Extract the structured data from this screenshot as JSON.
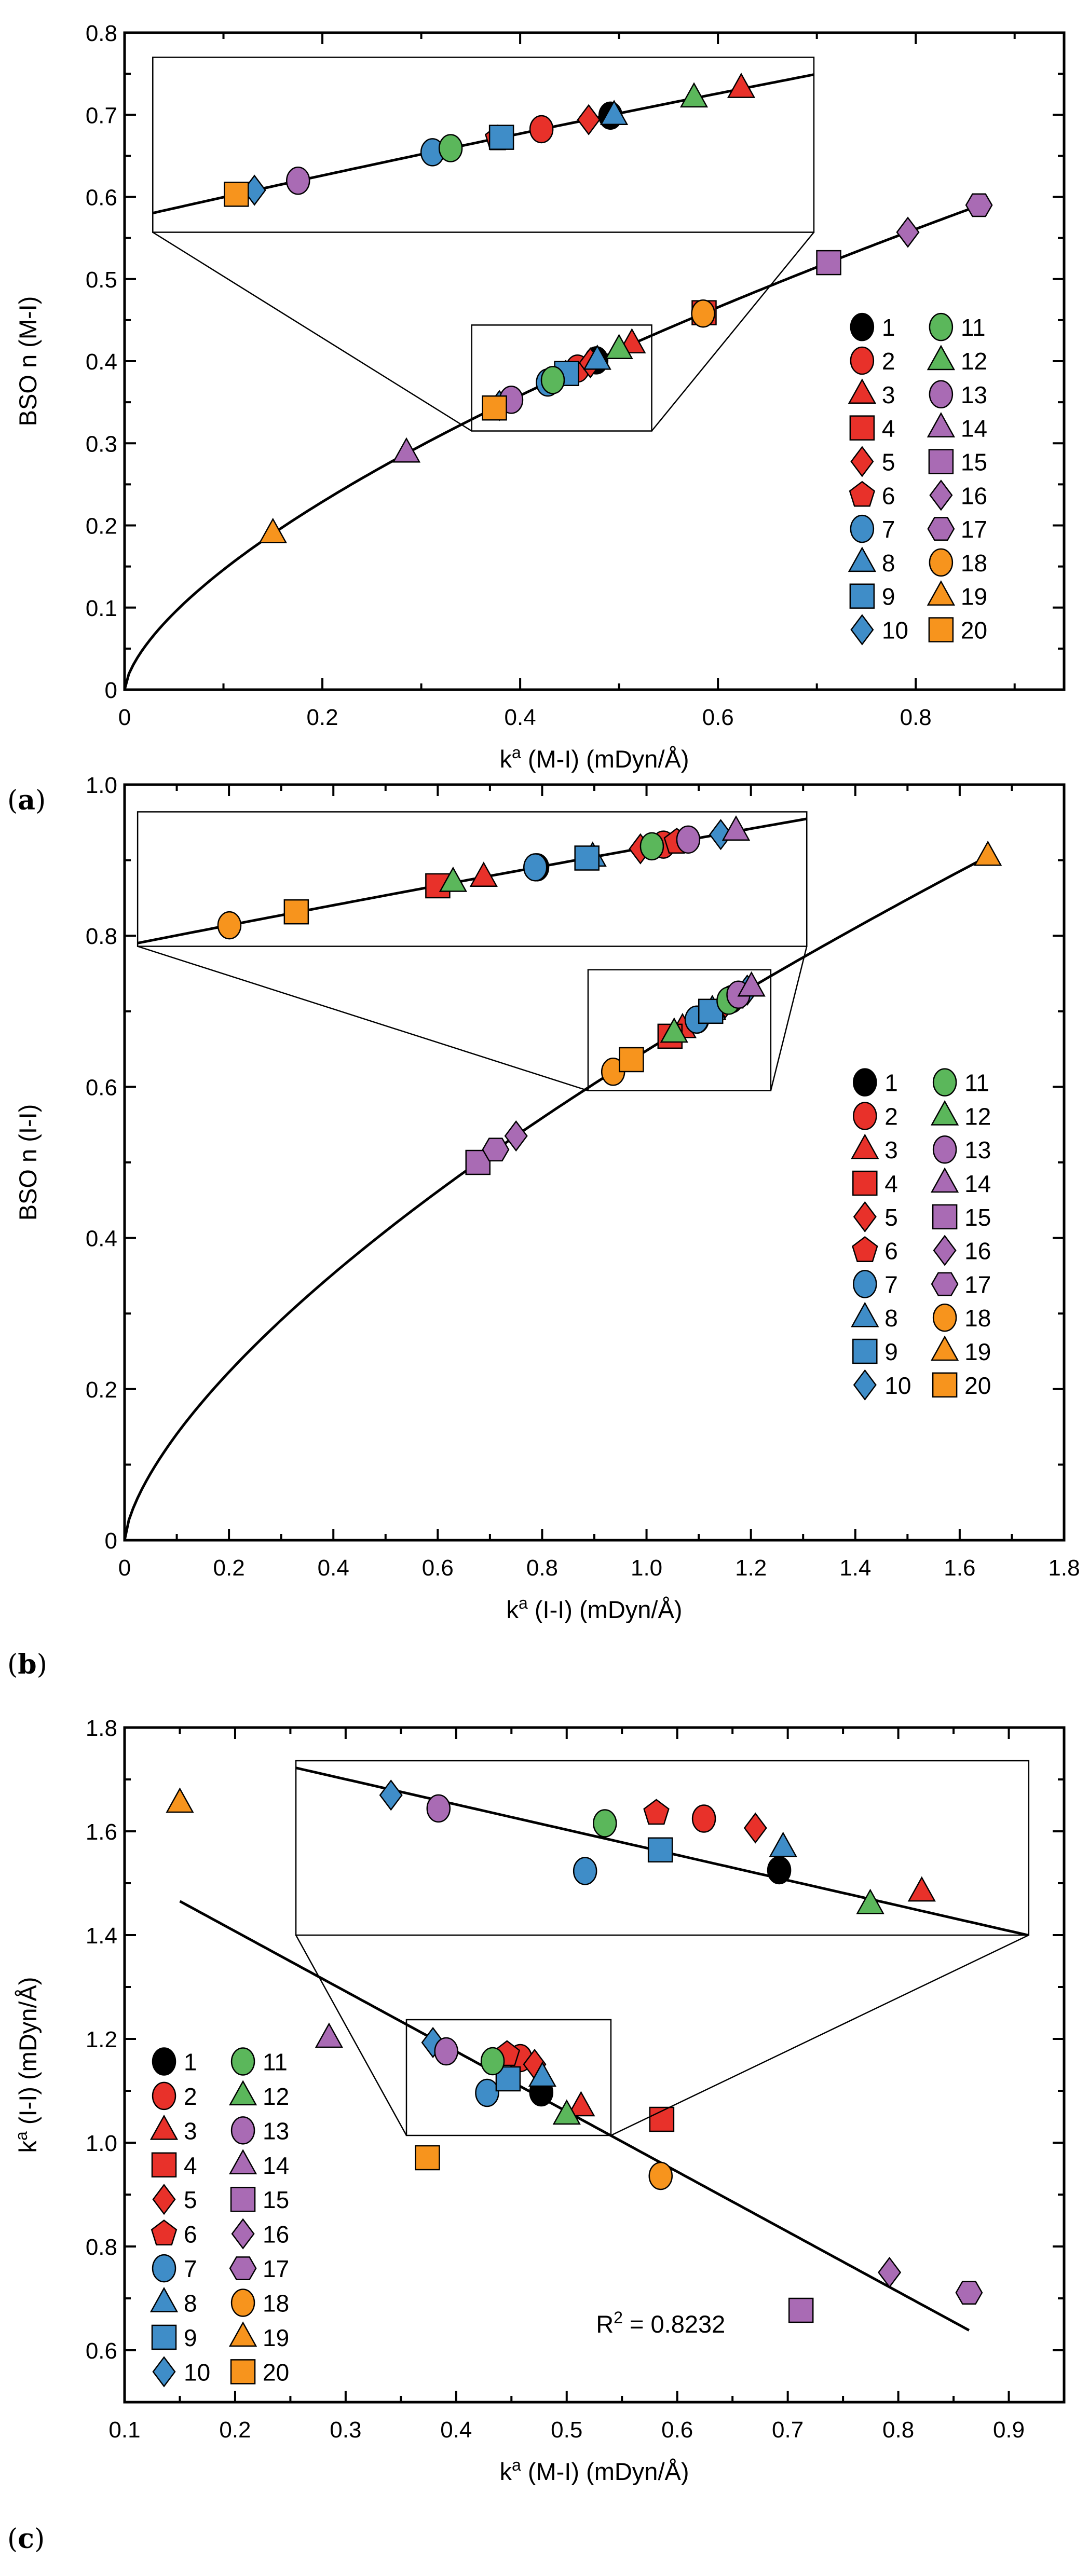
{
  "chart_data": [
    {
      "type": "scatter",
      "panel_label": {
        "open": "(",
        "letter": "a",
        "close": ")"
      },
      "xlabel": {
        "base": "k",
        "sup": "a",
        "rest": " (M-I) (mDyn/Å)"
      },
      "ylabel": "BSO n (M-I)",
      "xlim": [
        0,
        0.95
      ],
      "ylim": [
        0,
        0.8
      ],
      "xticks": [
        {
          "v": 0,
          "label": "0"
        },
        {
          "v": 0.2,
          "label": "0.2"
        },
        {
          "v": 0.4,
          "label": "0.4"
        },
        {
          "v": 0.6,
          "label": "0.6"
        },
        {
          "v": 0.8,
          "label": "0.8"
        }
      ],
      "yticks": [
        {
          "v": 0,
          "label": "0"
        },
        {
          "v": 0.1,
          "label": "0.1"
        },
        {
          "v": 0.2,
          "label": "0.2"
        },
        {
          "v": 0.3,
          "label": "0.3"
        },
        {
          "v": 0.4,
          "label": "0.4"
        },
        {
          "v": 0.5,
          "label": "0.5"
        },
        {
          "v": 0.6,
          "label": "0.6"
        },
        {
          "v": 0.7,
          "label": "0.7"
        },
        {
          "v": 0.8,
          "label": "0.8"
        }
      ],
      "xminor": 0.1,
      "yminor": 0.05,
      "fit": {
        "kind": "power",
        "a": 0.648,
        "b": 0.647,
        "xrange": [
          0,
          0.864
        ]
      },
      "inset": {
        "source_x": [
          0.351,
          0.533
        ],
        "source_y": [
          0.315,
          0.444
        ],
        "display_x": [
          0.0285,
          0.697
        ],
        "display_y": [
          0.557,
          0.77
        ]
      },
      "legend": "bottom-right",
      "series": [
        {
          "name": "1",
          "shape": "circle",
          "color": "#000000",
          "x": 0.477,
          "y": 0.401
        },
        {
          "name": "2",
          "shape": "circle",
          "color": "#E8312A",
          "x": 0.458,
          "y": 0.391
        },
        {
          "name": "3",
          "shape": "triangle",
          "color": "#E8312A",
          "x": 0.513,
          "y": 0.421
        },
        {
          "name": "4",
          "shape": "square",
          "color": "#E8312A",
          "x": 0.586,
          "y": 0.459
        },
        {
          "name": "5",
          "shape": "diamond",
          "color": "#E8312A",
          "x": 0.471,
          "y": 0.398
        },
        {
          "name": "6",
          "shape": "pentagon",
          "color": "#E8312A",
          "x": 0.446,
          "y": 0.384
        },
        {
          "name": "7",
          "shape": "circle",
          "color": "#3F8DC8",
          "x": 0.428,
          "y": 0.374
        },
        {
          "name": "8",
          "shape": "triangle",
          "color": "#3F8DC8",
          "x": 0.478,
          "y": 0.401
        },
        {
          "name": "9",
          "shape": "square",
          "color": "#3F8DC8",
          "x": 0.447,
          "y": 0.385
        },
        {
          "name": "10",
          "shape": "diamond",
          "color": "#3F8DC8",
          "x": 0.379,
          "y": 0.346
        },
        {
          "name": "11",
          "shape": "circle",
          "color": "#5BB75B",
          "x": 0.433,
          "y": 0.377
        },
        {
          "name": "12",
          "shape": "triangle",
          "color": "#5BB75B",
          "x": 0.5,
          "y": 0.414
        },
        {
          "name": "13",
          "shape": "circle",
          "color": "#A96BB4",
          "x": 0.391,
          "y": 0.353
        },
        {
          "name": "14",
          "shape": "triangle",
          "color": "#A96BB4",
          "x": 0.285,
          "y": 0.288
        },
        {
          "name": "15",
          "shape": "square",
          "color": "#A96BB4",
          "x": 0.712,
          "y": 0.52
        },
        {
          "name": "16",
          "shape": "diamond",
          "color": "#A96BB4",
          "x": 0.792,
          "y": 0.557
        },
        {
          "name": "17",
          "shape": "hexagon",
          "color": "#A96BB4",
          "x": 0.864,
          "y": 0.59
        },
        {
          "name": "18",
          "shape": "circle",
          "color": "#F7941D",
          "x": 0.585,
          "y": 0.458
        },
        {
          "name": "19",
          "shape": "triangle",
          "color": "#F7941D",
          "x": 0.15,
          "y": 0.19
        },
        {
          "name": "20",
          "shape": "square",
          "color": "#F7941D",
          "x": 0.374,
          "y": 0.343
        }
      ]
    },
    {
      "type": "scatter",
      "panel_label": {
        "open": "(",
        "letter": "b",
        "close": ")"
      },
      "xlabel": {
        "base": "k",
        "sup": "a",
        "rest": " (I-I) (mDyn/Å)"
      },
      "ylabel": "BSO n (I-I)",
      "xlim": [
        0,
        1.8
      ],
      "ylim": [
        0,
        1.0
      ],
      "xticks": [
        {
          "v": 0,
          "label": "0"
        },
        {
          "v": 0.2,
          "label": "0.2"
        },
        {
          "v": 0.4,
          "label": "0.4"
        },
        {
          "v": 0.6,
          "label": "0.6"
        },
        {
          "v": 0.8,
          "label": "0.8"
        },
        {
          "v": 1.0,
          "label": "1.0"
        },
        {
          "v": 1.2,
          "label": "1.2"
        },
        {
          "v": 1.4,
          "label": "1.4"
        },
        {
          "v": 1.6,
          "label": "1.6"
        },
        {
          "v": 1.8,
          "label": "1.8"
        }
      ],
      "yticks": [
        {
          "v": 0,
          "label": "0"
        },
        {
          "v": 0.2,
          "label": "0.2"
        },
        {
          "v": 0.4,
          "label": "0.4"
        },
        {
          "v": 0.6,
          "label": "0.6"
        },
        {
          "v": 0.8,
          "label": "0.8"
        },
        {
          "v": 1.0,
          "label": "1.0"
        }
      ],
      "xminor": 0.1,
      "yminor": 0.1,
      "fit": {
        "kind": "power",
        "a": 0.648,
        "b": 0.664,
        "xrange": [
          0,
          1.65
        ]
      },
      "inset": {
        "source_x": [
          0.888,
          1.238
        ],
        "source_y": [
          0.595,
          0.755
        ],
        "display_x": [
          0.025,
          1.307
        ],
        "display_y": [
          0.786,
          0.964
        ]
      },
      "legend": "bottom-right",
      "series": [
        {
          "name": "1",
          "shape": "circle",
          "color": "#000000",
          "x": 1.097,
          "y": 0.689
        },
        {
          "name": "2",
          "shape": "circle",
          "color": "#E8312A",
          "x": 1.163,
          "y": 0.716
        },
        {
          "name": "3",
          "shape": "triangle",
          "color": "#E8312A",
          "x": 1.069,
          "y": 0.677
        },
        {
          "name": "4",
          "shape": "square",
          "color": "#E8312A",
          "x": 1.045,
          "y": 0.667
        },
        {
          "name": "5",
          "shape": "diamond",
          "color": "#E8312A",
          "x": 1.151,
          "y": 0.711
        },
        {
          "name": "6",
          "shape": "pentagon",
          "color": "#E8312A",
          "x": 1.17,
          "y": 0.719
        },
        {
          "name": "7",
          "shape": "circle",
          "color": "#3F8DC8",
          "x": 1.096,
          "y": 0.689
        },
        {
          "name": "8",
          "shape": "triangle",
          "color": "#3F8DC8",
          "x": 1.126,
          "y": 0.701
        },
        {
          "name": "9",
          "shape": "square",
          "color": "#3F8DC8",
          "x": 1.123,
          "y": 0.7
        },
        {
          "name": "10",
          "shape": "diamond",
          "color": "#3F8DC8",
          "x": 1.193,
          "y": 0.728
        },
        {
          "name": "11",
          "shape": "circle",
          "color": "#5BB75B",
          "x": 1.157,
          "y": 0.714
        },
        {
          "name": "12",
          "shape": "triangle",
          "color": "#5BB75B",
          "x": 1.053,
          "y": 0.671
        },
        {
          "name": "13",
          "shape": "circle",
          "color": "#A96BB4",
          "x": 1.176,
          "y": 0.722
        },
        {
          "name": "14",
          "shape": "triangle",
          "color": "#A96BB4",
          "x": 1.201,
          "y": 0.732
        },
        {
          "name": "15",
          "shape": "square",
          "color": "#A96BB4",
          "x": 0.677,
          "y": 0.5
        },
        {
          "name": "16",
          "shape": "diamond",
          "color": "#A96BB4",
          "x": 0.75,
          "y": 0.535
        },
        {
          "name": "17",
          "shape": "hexagon",
          "color": "#A96BB4",
          "x": 0.711,
          "y": 0.517
        },
        {
          "name": "18",
          "shape": "circle",
          "color": "#F7941D",
          "x": 0.936,
          "y": 0.62
        },
        {
          "name": "19",
          "shape": "triangle",
          "color": "#F7941D",
          "x": 1.654,
          "y": 0.905
        },
        {
          "name": "20",
          "shape": "square",
          "color": "#F7941D",
          "x": 0.971,
          "y": 0.636
        }
      ]
    },
    {
      "type": "scatter",
      "panel_label": {
        "open": "(",
        "letter": "c",
        "close": ")"
      },
      "xlabel": {
        "base": "k",
        "sup": "a",
        "rest": " (M-I) (mDyn/Å)"
      },
      "ylabel": {
        "base": "k",
        "sup": "a",
        "rest": " (I-I) (mDyn/Å)"
      },
      "xlim": [
        0.1,
        0.95
      ],
      "ylim": [
        0.5,
        1.8
      ],
      "xticks": [
        {
          "v": 0.1,
          "label": "0.1"
        },
        {
          "v": 0.2,
          "label": "0.2"
        },
        {
          "v": 0.3,
          "label": "0.3"
        },
        {
          "v": 0.4,
          "label": "0.4"
        },
        {
          "v": 0.5,
          "label": "0.5"
        },
        {
          "v": 0.6,
          "label": "0.6"
        },
        {
          "v": 0.7,
          "label": "0.7"
        },
        {
          "v": 0.8,
          "label": "0.8"
        },
        {
          "v": 0.9,
          "label": "0.9"
        }
      ],
      "yticks": [
        {
          "v": 0.6,
          "label": "0.6"
        },
        {
          "v": 0.8,
          "label": "0.8"
        },
        {
          "v": 1.0,
          "label": "1.0"
        },
        {
          "v": 1.2,
          "label": "1.2"
        },
        {
          "v": 1.4,
          "label": "1.4"
        },
        {
          "v": 1.6,
          "label": "1.6"
        },
        {
          "v": 1.8,
          "label": "1.8"
        }
      ],
      "xminor": 0.05,
      "yminor": 0.1,
      "fit": {
        "kind": "linear",
        "intercept": 1.639,
        "slope": -1.158,
        "xrange": [
          0.15,
          0.864
        ]
      },
      "annotation": {
        "base": "R",
        "sup": "2",
        "rest": " = 0.8232",
        "x": 0.585,
        "y": 0.65
      },
      "inset": {
        "source_x": [
          0.355,
          0.54
        ],
        "source_y": [
          1.014,
          1.237
        ],
        "display_x": [
          0.255,
          0.918
        ],
        "display_y": [
          1.4,
          1.736
        ]
      },
      "legend": "bottom-left",
      "series": [
        {
          "name": "1",
          "shape": "circle",
          "color": "#000000",
          "x": 0.477,
          "y": 1.097
        },
        {
          "name": "2",
          "shape": "circle",
          "color": "#E8312A",
          "x": 0.458,
          "y": 1.163
        },
        {
          "name": "3",
          "shape": "triangle",
          "color": "#E8312A",
          "x": 0.513,
          "y": 1.069
        },
        {
          "name": "4",
          "shape": "square",
          "color": "#E8312A",
          "x": 0.586,
          "y": 1.045
        },
        {
          "name": "5",
          "shape": "diamond",
          "color": "#E8312A",
          "x": 0.471,
          "y": 1.151
        },
        {
          "name": "6",
          "shape": "pentagon",
          "color": "#E8312A",
          "x": 0.446,
          "y": 1.17
        },
        {
          "name": "7",
          "shape": "circle",
          "color": "#3F8DC8",
          "x": 0.428,
          "y": 1.096
        },
        {
          "name": "8",
          "shape": "triangle",
          "color": "#3F8DC8",
          "x": 0.478,
          "y": 1.126
        },
        {
          "name": "9",
          "shape": "square",
          "color": "#3F8DC8",
          "x": 0.447,
          "y": 1.123
        },
        {
          "name": "10",
          "shape": "diamond",
          "color": "#3F8DC8",
          "x": 0.379,
          "y": 1.193
        },
        {
          "name": "11",
          "shape": "circle",
          "color": "#5BB75B",
          "x": 0.433,
          "y": 1.157
        },
        {
          "name": "12",
          "shape": "triangle",
          "color": "#5BB75B",
          "x": 0.5,
          "y": 1.053
        },
        {
          "name": "13",
          "shape": "circle",
          "color": "#A96BB4",
          "x": 0.391,
          "y": 1.176
        },
        {
          "name": "14",
          "shape": "triangle",
          "color": "#A96BB4",
          "x": 0.285,
          "y": 1.201
        },
        {
          "name": "15",
          "shape": "square",
          "color": "#A96BB4",
          "x": 0.712,
          "y": 0.677
        },
        {
          "name": "16",
          "shape": "diamond",
          "color": "#A96BB4",
          "x": 0.792,
          "y": 0.75
        },
        {
          "name": "17",
          "shape": "hexagon",
          "color": "#A96BB4",
          "x": 0.864,
          "y": 0.711
        },
        {
          "name": "18",
          "shape": "circle",
          "color": "#F7941D",
          "x": 0.585,
          "y": 0.936
        },
        {
          "name": "19",
          "shape": "triangle",
          "color": "#F7941D",
          "x": 0.15,
          "y": 1.654
        },
        {
          "name": "20",
          "shape": "square",
          "color": "#F7941D",
          "x": 0.374,
          "y": 0.971
        }
      ]
    }
  ]
}
